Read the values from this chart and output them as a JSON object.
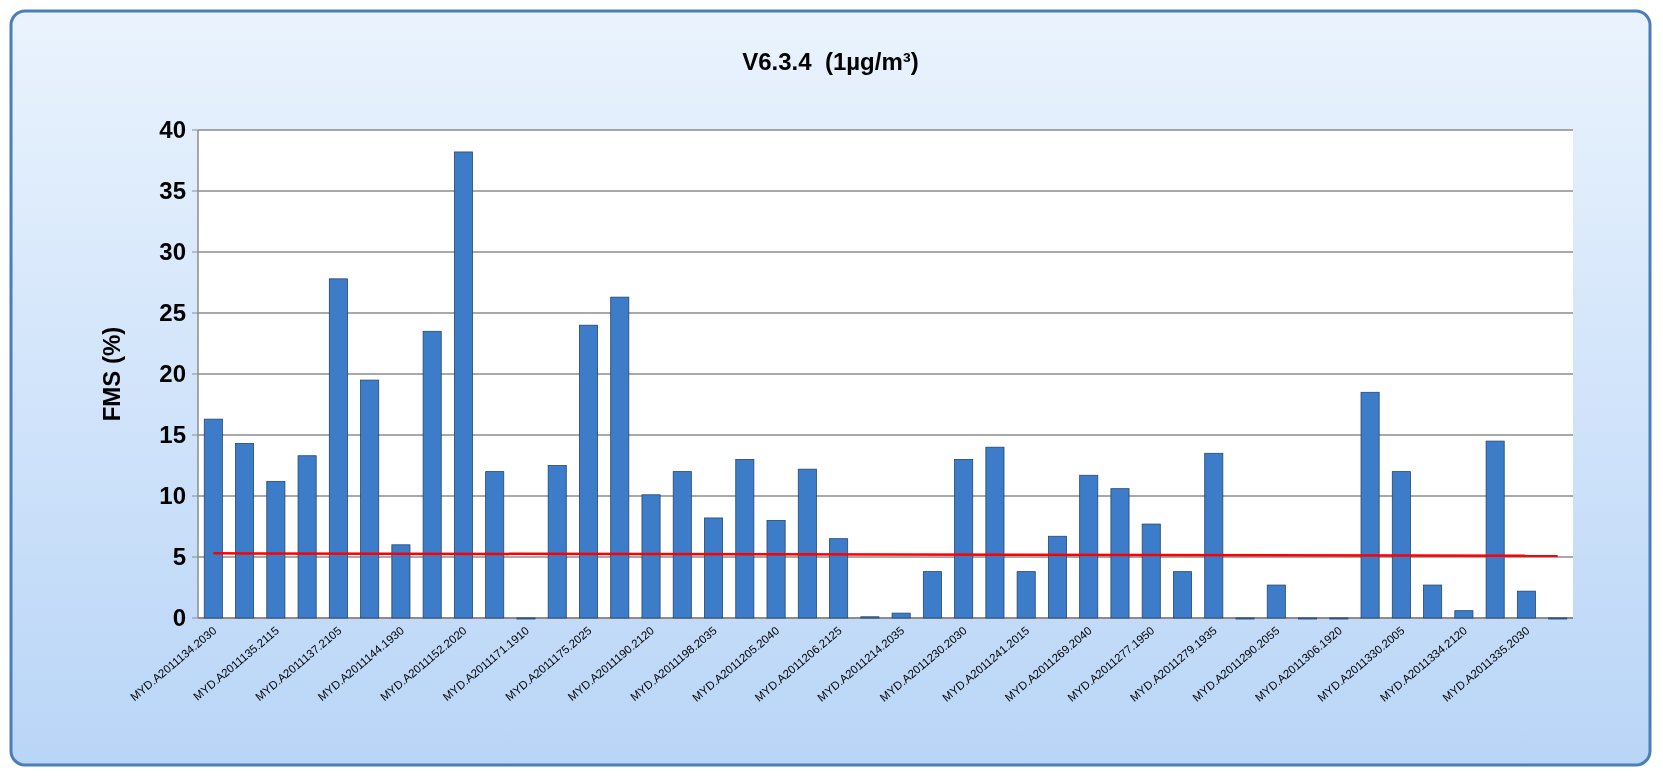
{
  "chart_data": {
    "type": "bar",
    "title": "V6.3.4  (1µg/m³)",
    "ylabel": "FMS (%)",
    "categories": [
      "MYD.A2011134.2030",
      null,
      "MYD.A2011135.2115",
      null,
      "MYD.A2011137.2105",
      null,
      "MYD.A2011144.1930",
      null,
      "MYD.A2011152.2020",
      null,
      "MYD.A2011171.1910",
      null,
      "MYD.A2011175.2025",
      null,
      "MYD.A2011190.2120",
      null,
      "MYD.A2011198.2035",
      null,
      "MYD.A2011205.2040",
      null,
      "MYD.A2011206.2125",
      null,
      "MYD.A2011214.2035",
      null,
      "MYD.A2011230.2030",
      null,
      "MYD.A2011241.2015",
      null,
      "MYD.A2011269.2040",
      null,
      "MYD.A2011277.1950",
      null,
      "MYD.A2011279.1935",
      null,
      "MYD.A2011290.2055",
      null,
      "MYD.A2011306.1920",
      null,
      "MYD.A2011330.2005",
      null,
      "MYD.A2011334.2120",
      null,
      "MYD.A2011335.2030",
      null
    ],
    "series": [
      {
        "color": "#3d7cc9",
        "values": [
          16.3,
          14.3,
          11.2,
          13.3,
          27.8,
          19.5,
          6.0,
          23.5,
          38.2,
          12.0,
          0,
          12.5,
          24.0,
          26.3,
          10.1,
          12.0,
          8.2,
          13.0,
          8.0,
          12.2,
          6.5,
          0.1,
          0.4,
          3.8,
          13.0,
          14.0,
          3.8,
          6.7,
          11.7,
          10.6,
          7.7,
          3.8,
          13.5,
          0,
          2.7,
          0,
          0,
          18.5,
          12.0,
          2.7,
          0.6,
          14.5,
          2.2,
          0
        ]
      },
      {
        "type": "line",
        "color": "#ff0000",
        "values": [
          5.3,
          null,
          null,
          null,
          null,
          null,
          null,
          null,
          null,
          null,
          null,
          null,
          null,
          null,
          null,
          null,
          null,
          null,
          null,
          null,
          null,
          null,
          null,
          null,
          null,
          null,
          null,
          null,
          null,
          null,
          null,
          null,
          null,
          null,
          null,
          null,
          null,
          null,
          null,
          null,
          null,
          null,
          null,
          5.1
        ]
      }
    ],
    "ylim": [
      0,
      40
    ],
    "yticks": [
      0,
      5,
      10,
      15,
      20,
      25,
      30,
      35,
      40
    ],
    "grid": "y"
  }
}
